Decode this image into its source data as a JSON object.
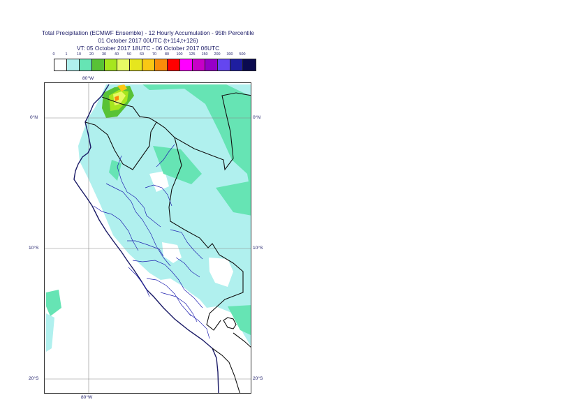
{
  "title": {
    "line1": "Total Precipitation (ECMWF Ensemble) - 12 Hourly Accumulation - 95th Percentile",
    "line2": "01 October 2017 00UTC (t+114,t+126)",
    "line3": "VT: 05 October 2017 18UTC - 06 October 2017 06UTC"
  },
  "legend": {
    "thresholds": [
      "0",
      "1",
      "10",
      "20",
      "30",
      "40",
      "50",
      "60",
      "70",
      "80",
      "100",
      "125",
      "150",
      "200",
      "300",
      "500"
    ],
    "colors": [
      "#ffffff",
      "#b0f0ee",
      "#66e4b4",
      "#58c236",
      "#a6e61e",
      "#e6fa64",
      "#e6e61e",
      "#fac814",
      "#fa8c0a",
      "#ff0000",
      "#ff00ff",
      "#c800c8",
      "#9600c8",
      "#6446f0",
      "#1e1ea0",
      "#0a0a50"
    ]
  },
  "axes": {
    "lon_top": "80°W",
    "lon_bottom": "80°W",
    "lat_0_left": "0°N",
    "lat_0_right": "0°N",
    "lat_10_left": "10°S",
    "lat_10_right": "10°S",
    "lat_20_left": "20°S",
    "lat_20_right": "20°S"
  }
}
